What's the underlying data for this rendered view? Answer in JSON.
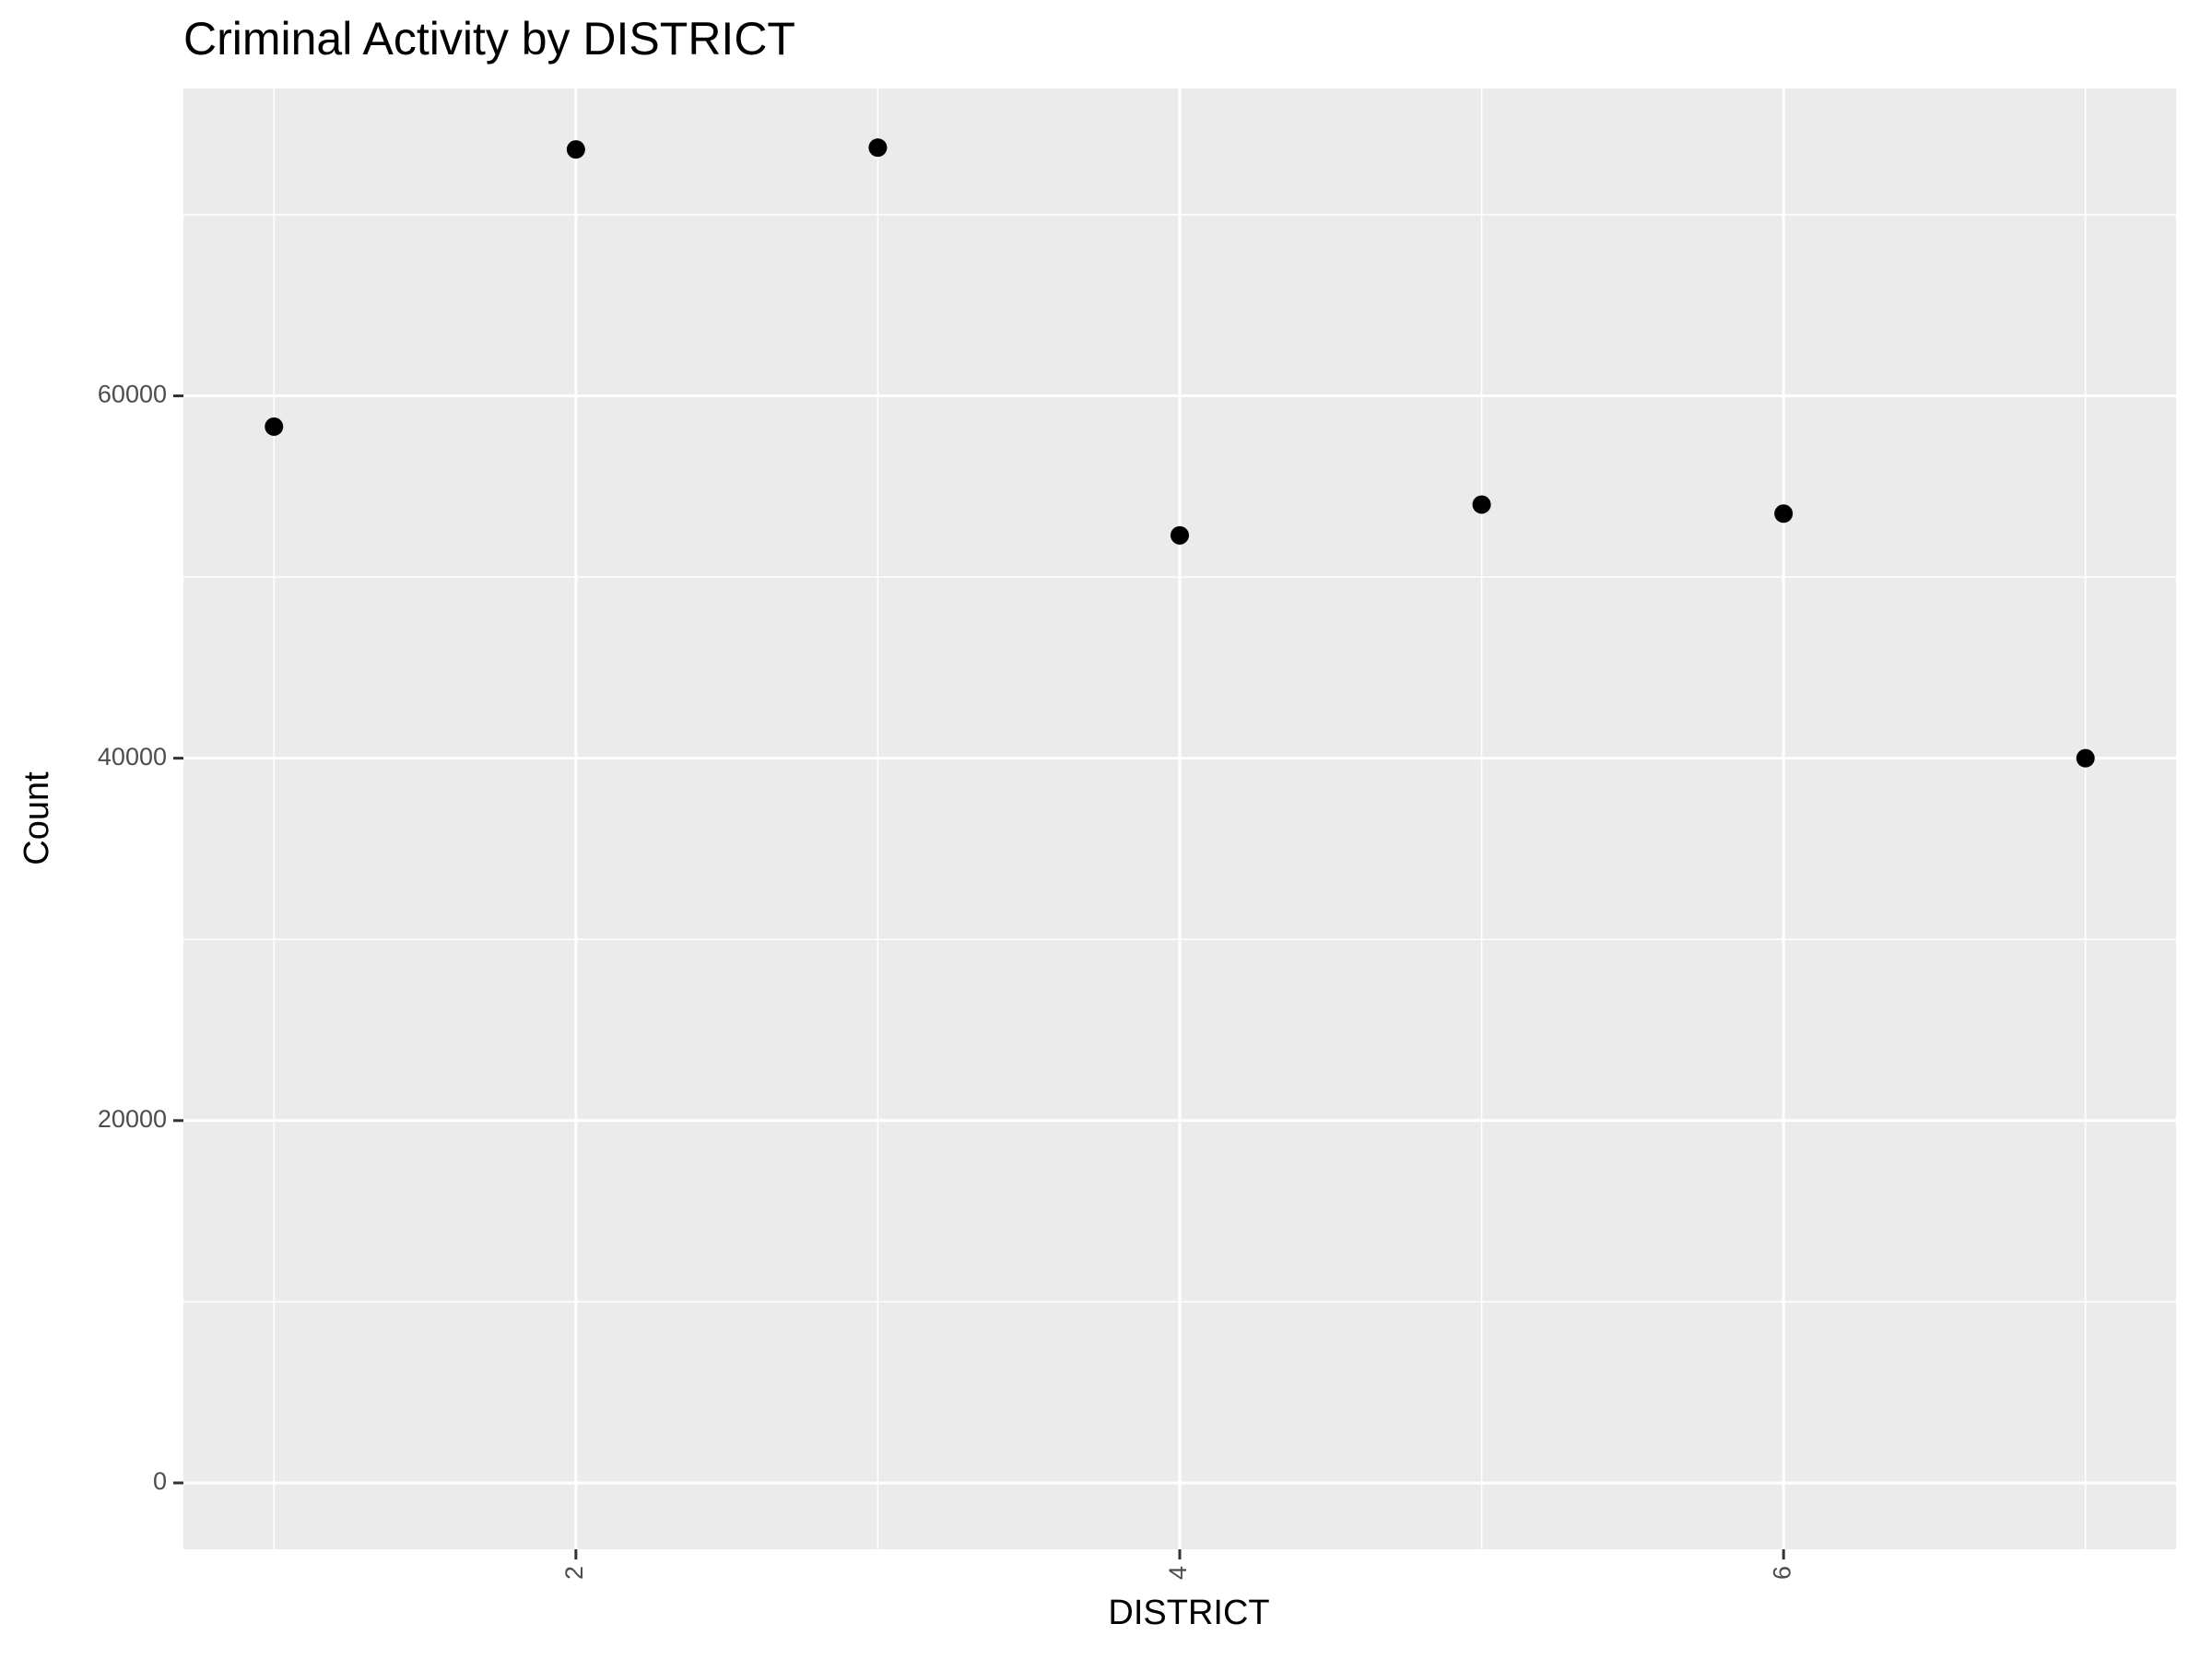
{
  "chart_data": {
    "type": "scatter",
    "title": "Criminal Activity by DISTRICT",
    "x_label": "DISTRICT",
    "y_label": "Count",
    "x": [
      1,
      2,
      3,
      4,
      5,
      6,
      7
    ],
    "series": [
      {
        "color": "#000000",
        "values": [
          58300,
          73600,
          73700,
          52300,
          54000,
          53500,
          40000
        ]
      }
    ],
    "xlim": [
      0.7,
      7.3
    ],
    "xticks": [
      2,
      4,
      6
    ],
    "x_minor_breaks": [
      1,
      3,
      5,
      7
    ],
    "ylim": [
      -3665,
      76965
    ],
    "yticks": [
      0,
      20000,
      40000,
      60000
    ],
    "y_minor_breaks": [
      10000,
      30000,
      50000,
      70000
    ],
    "grid": true
  }
}
